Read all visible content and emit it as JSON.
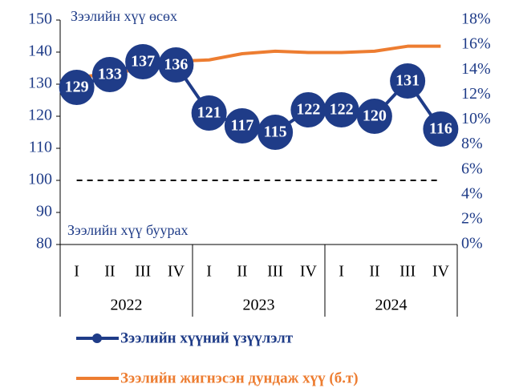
{
  "chart_data": {
    "type": "line",
    "annotations": [
      "Зээлийн хүү өсөх",
      "Зээлийн хүү буурах"
    ],
    "categories": [
      "I",
      "II",
      "III",
      "IV",
      "I",
      "II",
      "III",
      "IV",
      "I",
      "II",
      "III",
      "IV"
    ],
    "groups": [
      "2022",
      "2023",
      "2024"
    ],
    "series": [
      {
        "name": "Зээлийн хүүний үзүүлэлт",
        "color": "#1f3c88",
        "axis": "y",
        "values": [
          129,
          133,
          137,
          136,
          121,
          117,
          115,
          122,
          122,
          120,
          131,
          116
        ]
      },
      {
        "name": "Зээлийн жигнэсэн дундаж хүү (б.т)",
        "color": "#ed7d31",
        "axis": "y2",
        "values": [
          13.4,
          13.7,
          14.1,
          14.7,
          14.8,
          15.3,
          15.5,
          15.4,
          15.4,
          15.5,
          15.9,
          15.9
        ]
      }
    ],
    "ylim": [
      80,
      150
    ],
    "yticks": [
      80,
      90,
      100,
      110,
      120,
      130,
      140,
      150
    ],
    "y2lim": [
      0,
      18
    ],
    "y2ticks": [
      {
        "value": 0,
        "label": "0%"
      },
      {
        "value": 2,
        "label": "2%"
      },
      {
        "value": 4,
        "label": "4%"
      },
      {
        "value": 6,
        "label": "6%"
      },
      {
        "value": 8,
        "label": "8%"
      },
      {
        "value": 10,
        "label": "10%"
      },
      {
        "value": 12,
        "label": "12%"
      },
      {
        "value": 14,
        "label": "14%"
      },
      {
        "value": 16,
        "label": "16%"
      },
      {
        "value": 18,
        "label": "18%"
      }
    ],
    "reference_line": 100
  }
}
